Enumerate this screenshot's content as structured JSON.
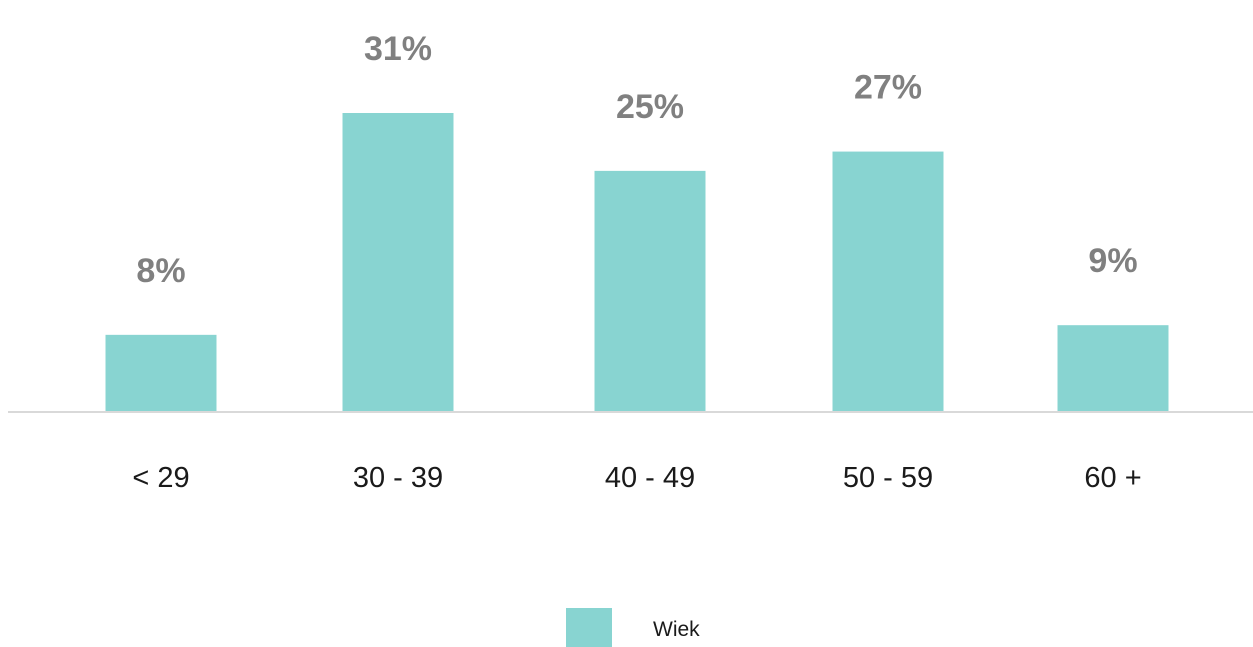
{
  "chart_data": {
    "type": "bar",
    "categories": [
      "< 29",
      "30 - 39",
      "40 - 49",
      "50 - 59",
      "60 +"
    ],
    "series": [
      {
        "name": "Wiek",
        "values": [
          8,
          31,
          25,
          27,
          9
        ],
        "value_labels": [
          "8%",
          "31%",
          "25%",
          "27%",
          "9%"
        ],
        "color": "#88d4d1"
      }
    ],
    "ylim": [
      0,
      31
    ],
    "grid": false,
    "legend_position": "bottom"
  },
  "colors": {
    "bar": "#88d4d1",
    "value_label": "#808080",
    "tick_label": "#1a1a1a",
    "baseline": "#d9d9d9",
    "legend_text": "#1a1a1a"
  }
}
